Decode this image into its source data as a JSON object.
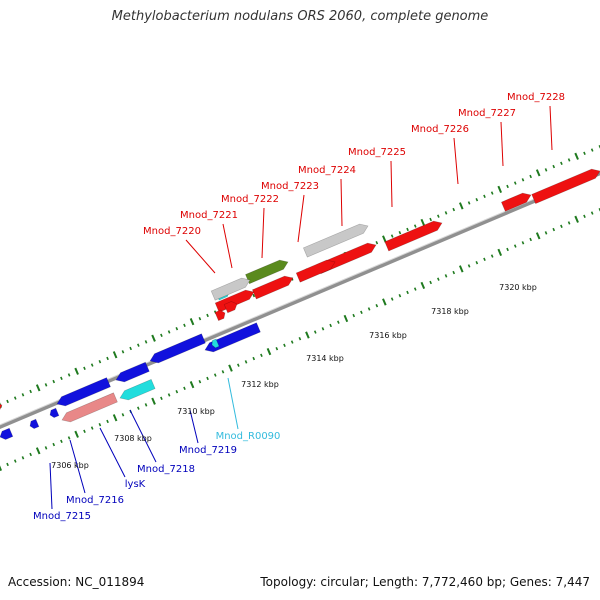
{
  "title": "Methylobacterium nodulans ORS 2060, complete genome",
  "footer": {
    "accession": "Accession: NC_011894",
    "summary": "Topology: circular; Length: 7,772,460 bp; Genes: 7,447"
  },
  "colors": {
    "backbone": "#9a9a9a",
    "tick": "#1f7a1f",
    "forward_gene": "#ee1111",
    "reverse_gene": "#1111dd",
    "rna_gene": "#22dddd",
    "pseudo_gene": "#c8c8c8",
    "other_gene": "#5a8a1e",
    "reverse_pseudo": "#e88888",
    "forward_label": "#dd0000",
    "reverse_label": "#0000bb",
    "rna_label": "#33bbdd"
  },
  "scale_labels": [
    "7306 kbp",
    "7308 kbp",
    "7310 kbp",
    "7312 kbp",
    "7314 kbp",
    "7316 kbp",
    "7318 kbp",
    "7320 kbp"
  ],
  "forward_labels": [
    "Mnod_7220",
    "Mnod_7221",
    "Mnod_7222",
    "Mnod_7223",
    "Mnod_7224",
    "Mnod_7225",
    "Mnod_7226",
    "Mnod_7227",
    "Mnod_7228"
  ],
  "reverse_labels": [
    "Mnod_7215",
    "Mnod_7216",
    "lysK",
    "Mnod_7218",
    "Mnod_7219",
    "Mnod_R0090"
  ],
  "genes": [
    {
      "strand": "fwd",
      "kind": "cds"
    },
    {
      "strand": "fwd",
      "kind": "cds"
    },
    {
      "strand": "fwd",
      "kind": "cds"
    },
    {
      "strand": "fwd",
      "kind": "cds"
    },
    {
      "strand": "fwd",
      "kind": "cds"
    },
    {
      "strand": "fwd",
      "kind": "cds"
    },
    {
      "strand": "fwd",
      "kind": "cds"
    },
    {
      "strand": "fwd",
      "kind": "cds"
    },
    {
      "strand": "fwd",
      "kind": "cds"
    },
    {
      "strand": "fwd",
      "kind": "cds"
    },
    {
      "strand": "fwd",
      "kind": "rna"
    },
    {
      "strand": "fwd",
      "kind": "pseudo"
    },
    {
      "strand": "fwd",
      "kind": "other"
    },
    {
      "strand": "fwd",
      "kind": "pseudo"
    },
    {
      "strand": "rev",
      "kind": "cds"
    },
    {
      "strand": "rev",
      "kind": "cds"
    },
    {
      "strand": "rev",
      "kind": "cds"
    },
    {
      "strand": "rev",
      "kind": "cds"
    },
    {
      "strand": "rev",
      "kind": "cds"
    },
    {
      "strand": "rev",
      "kind": "cds"
    },
    {
      "strand": "rev",
      "kind": "cds"
    },
    {
      "strand": "rev",
      "kind": "rna"
    },
    {
      "strand": "rev",
      "kind": "pseudo"
    },
    {
      "strand": "rev",
      "kind": "rna"
    }
  ]
}
